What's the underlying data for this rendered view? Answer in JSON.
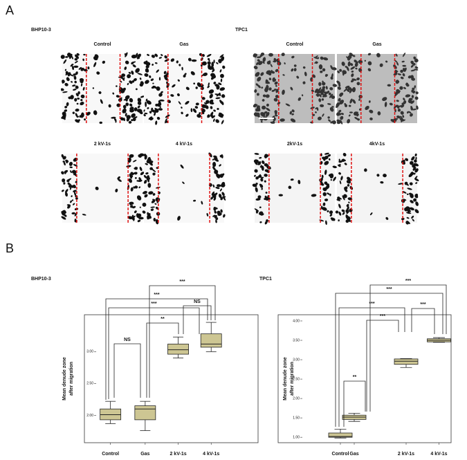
{
  "panel_a": {
    "label": "A",
    "groups": [
      {
        "title": "BHP10-3",
        "images": [
          "Control",
          "Gas",
          "2 kV-1s",
          "4 kV-1s"
        ]
      },
      {
        "title": "TPC1",
        "images": [
          "Control",
          "Gas",
          "2kV-1s",
          "4kV-1s"
        ]
      }
    ]
  },
  "panel_b": {
    "label": "B"
  },
  "chart_data": [
    {
      "type": "box",
      "title": "BHP10-3",
      "y_label": [
        "Mean denude zone",
        "after migration"
      ],
      "categories": [
        "Control",
        "Gas",
        "2 kV-1s",
        "4 kV-1s"
      ],
      "color": "#cdc693",
      "boxes": [
        {
          "min": 1.87,
          "q1": 1.93,
          "median": 2.01,
          "q3": 2.1,
          "max": 2.22
        },
        {
          "min": 1.76,
          "q1": 1.93,
          "median": 2.1,
          "q3": 2.15,
          "max": 2.22
        },
        {
          "min": 2.9,
          "q1": 2.96,
          "median": 3.03,
          "q3": 3.12,
          "max": 3.23
        },
        {
          "min": 3.0,
          "q1": 3.07,
          "median": 3.12,
          "q3": 3.28,
          "max": 3.46
        }
      ],
      "ylim": [
        1.57,
        3.58
      ],
      "yticks": [
        {
          "value": 2,
          "label": "2.00"
        },
        {
          "value": 2.5,
          "label": "2.50"
        },
        {
          "value": 3,
          "label": "3.00"
        }
      ],
      "annotations": [
        "NS",
        "**",
        "***",
        "***",
        "***",
        "NS"
      ]
    },
    {
      "type": "box",
      "title": "TPC1",
      "y_label": [
        "Mean denude zone",
        "after migration"
      ],
      "categories": [
        "Control",
        "Gas",
        "2 kV-1s",
        "4 kV-1s"
      ],
      "color": "#cdc693",
      "boxes": [
        {
          "min": 0.98,
          "q1": 1.0,
          "median": 1.02,
          "q3": 1.11,
          "max": 1.21
        },
        {
          "min": 1.41,
          "q1": 1.46,
          "median": 1.52,
          "q3": 1.57,
          "max": 1.62
        },
        {
          "min": 2.8,
          "q1": 2.88,
          "median": 2.96,
          "q3": 3.02,
          "max": 3.03
        },
        {
          "min": 3.45,
          "q1": 3.46,
          "median": 3.5,
          "q3": 3.54,
          "max": 3.57
        }
      ],
      "ylim": [
        0.86,
        4.16
      ],
      "yticks": [
        {
          "value": 1,
          "label": "1.00"
        },
        {
          "value": 1.5,
          "label": "1.50"
        },
        {
          "value": 2,
          "label": "2.00"
        },
        {
          "value": 2.5,
          "label": "2.50"
        },
        {
          "value": 3,
          "label": "3.00"
        },
        {
          "value": 3.5,
          "label": "3.50"
        },
        {
          "value": 4,
          "label": "4.00"
        }
      ],
      "annotations": [
        "**",
        "***",
        "***",
        "***",
        "***",
        "***"
      ]
    }
  ]
}
